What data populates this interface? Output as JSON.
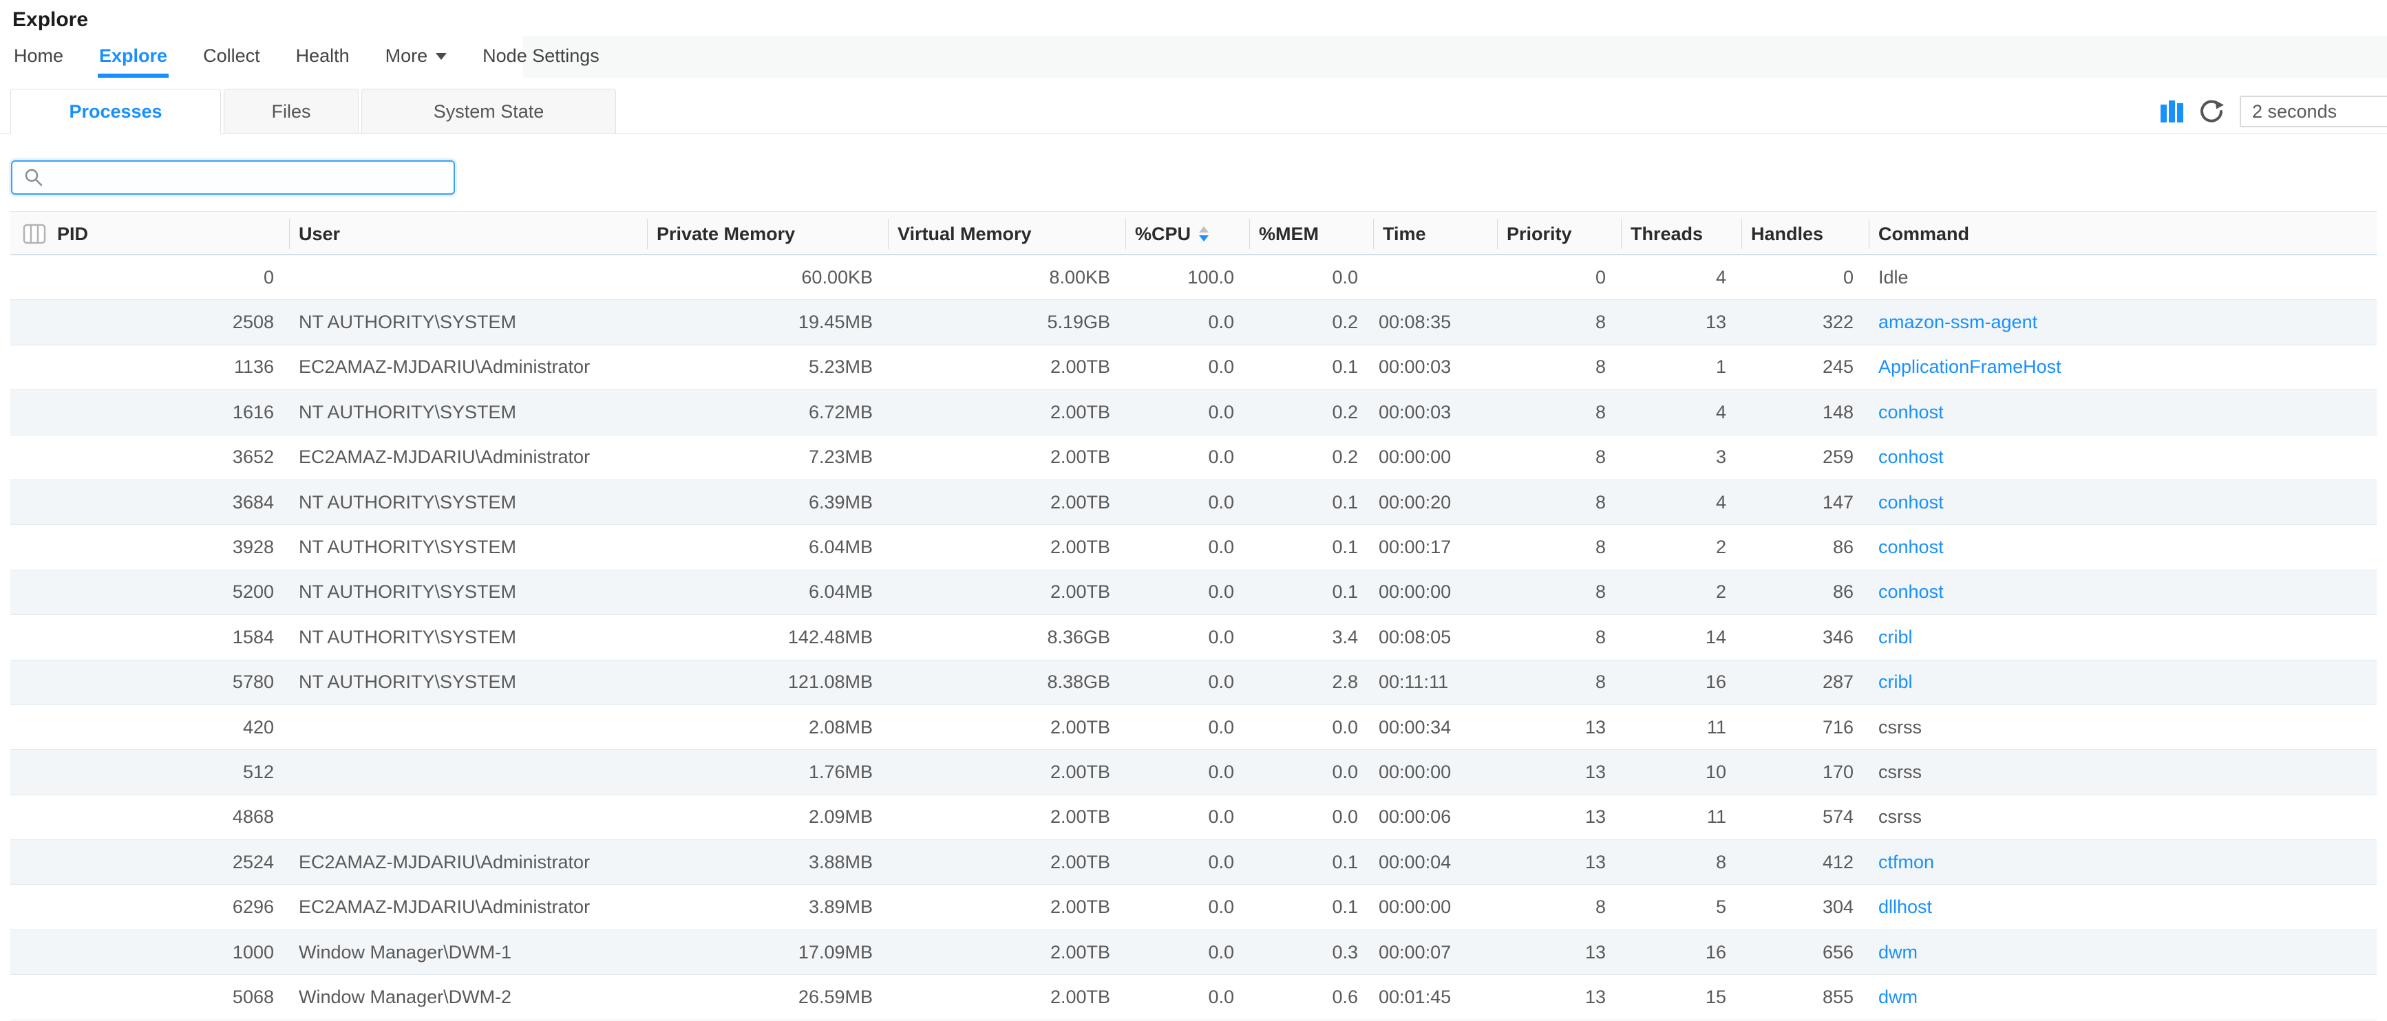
{
  "page_title": "Explore",
  "nav": {
    "items": [
      {
        "label": "Home",
        "active": false,
        "caret": false
      },
      {
        "label": "Explore",
        "active": true,
        "caret": false
      },
      {
        "label": "Collect",
        "active": false,
        "caret": false
      },
      {
        "label": "Health",
        "active": false,
        "caret": false
      },
      {
        "label": "More",
        "active": false,
        "caret": true
      },
      {
        "label": "Node Settings",
        "active": false,
        "caret": false
      }
    ]
  },
  "view_tabs": [
    {
      "label": "Processes",
      "active": true
    },
    {
      "label": "Files",
      "active": false
    },
    {
      "label": "System State",
      "active": false
    }
  ],
  "toolbar": {
    "chart_icon": "bar-chart-icon",
    "refresh_icon": "refresh-icon",
    "refresh_interval_value": "2 seconds"
  },
  "search": {
    "value": "",
    "placeholder": "",
    "icon": "search-icon"
  },
  "process_table": {
    "sort": {
      "column": "%CPU",
      "direction": "desc"
    },
    "columns": [
      {
        "label": "PID",
        "key": "pid",
        "align": "right",
        "icon": "columns-icon"
      },
      {
        "label": "User",
        "key": "user",
        "align": "left"
      },
      {
        "label": "Private Memory",
        "key": "private_memory",
        "align": "right"
      },
      {
        "label": "Virtual Memory",
        "key": "virtual_memory",
        "align": "right"
      },
      {
        "label": "%CPU",
        "key": "cpu",
        "align": "right",
        "sort": "desc"
      },
      {
        "label": "%MEM",
        "key": "mem",
        "align": "right"
      },
      {
        "label": "Time",
        "key": "time",
        "align": "left"
      },
      {
        "label": "Priority",
        "key": "priority",
        "align": "right"
      },
      {
        "label": "Threads",
        "key": "threads",
        "align": "right"
      },
      {
        "label": "Handles",
        "key": "handles",
        "align": "right"
      },
      {
        "label": "Command",
        "key": "command",
        "align": "left"
      }
    ],
    "rows": [
      {
        "pid": "0",
        "user": "",
        "private_memory": "60.00KB",
        "virtual_memory": "8.00KB",
        "cpu": "100.0",
        "mem": "0.0",
        "time": "",
        "priority": "0",
        "threads": "4",
        "handles": "0",
        "command": "Idle",
        "command_link": false
      },
      {
        "pid": "2508",
        "user": "NT AUTHORITY\\SYSTEM",
        "private_memory": "19.45MB",
        "virtual_memory": "5.19GB",
        "cpu": "0.0",
        "mem": "0.2",
        "time": "00:08:35",
        "priority": "8",
        "threads": "13",
        "handles": "322",
        "command": "amazon-ssm-agent",
        "command_link": true
      },
      {
        "pid": "1136",
        "user": "EC2AMAZ-MJDARIU\\Administrator",
        "private_memory": "5.23MB",
        "virtual_memory": "2.00TB",
        "cpu": "0.0",
        "mem": "0.1",
        "time": "00:00:03",
        "priority": "8",
        "threads": "1",
        "handles": "245",
        "command": "ApplicationFrameHost",
        "command_link": true
      },
      {
        "pid": "1616",
        "user": "NT AUTHORITY\\SYSTEM",
        "private_memory": "6.72MB",
        "virtual_memory": "2.00TB",
        "cpu": "0.0",
        "mem": "0.2",
        "time": "00:00:03",
        "priority": "8",
        "threads": "4",
        "handles": "148",
        "command": "conhost",
        "command_link": true
      },
      {
        "pid": "3652",
        "user": "EC2AMAZ-MJDARIU\\Administrator",
        "private_memory": "7.23MB",
        "virtual_memory": "2.00TB",
        "cpu": "0.0",
        "mem": "0.2",
        "time": "00:00:00",
        "priority": "8",
        "threads": "3",
        "handles": "259",
        "command": "conhost",
        "command_link": true
      },
      {
        "pid": "3684",
        "user": "NT AUTHORITY\\SYSTEM",
        "private_memory": "6.39MB",
        "virtual_memory": "2.00TB",
        "cpu": "0.0",
        "mem": "0.1",
        "time": "00:00:20",
        "priority": "8",
        "threads": "4",
        "handles": "147",
        "command": "conhost",
        "command_link": true
      },
      {
        "pid": "3928",
        "user": "NT AUTHORITY\\SYSTEM",
        "private_memory": "6.04MB",
        "virtual_memory": "2.00TB",
        "cpu": "0.0",
        "mem": "0.1",
        "time": "00:00:17",
        "priority": "8",
        "threads": "2",
        "handles": "86",
        "command": "conhost",
        "command_link": true
      },
      {
        "pid": "5200",
        "user": "NT AUTHORITY\\SYSTEM",
        "private_memory": "6.04MB",
        "virtual_memory": "2.00TB",
        "cpu": "0.0",
        "mem": "0.1",
        "time": "00:00:00",
        "priority": "8",
        "threads": "2",
        "handles": "86",
        "command": "conhost",
        "command_link": true
      },
      {
        "pid": "1584",
        "user": "NT AUTHORITY\\SYSTEM",
        "private_memory": "142.48MB",
        "virtual_memory": "8.36GB",
        "cpu": "0.0",
        "mem": "3.4",
        "time": "00:08:05",
        "priority": "8",
        "threads": "14",
        "handles": "346",
        "command": "cribl",
        "command_link": true
      },
      {
        "pid": "5780",
        "user": "NT AUTHORITY\\SYSTEM",
        "private_memory": "121.08MB",
        "virtual_memory": "8.38GB",
        "cpu": "0.0",
        "mem": "2.8",
        "time": "00:11:11",
        "priority": "8",
        "threads": "16",
        "handles": "287",
        "command": "cribl",
        "command_link": true
      },
      {
        "pid": "420",
        "user": "",
        "private_memory": "2.08MB",
        "virtual_memory": "2.00TB",
        "cpu": "0.0",
        "mem": "0.0",
        "time": "00:00:34",
        "priority": "13",
        "threads": "11",
        "handles": "716",
        "command": "csrss",
        "command_link": false
      },
      {
        "pid": "512",
        "user": "",
        "private_memory": "1.76MB",
        "virtual_memory": "2.00TB",
        "cpu": "0.0",
        "mem": "0.0",
        "time": "00:00:00",
        "priority": "13",
        "threads": "10",
        "handles": "170",
        "command": "csrss",
        "command_link": false
      },
      {
        "pid": "4868",
        "user": "",
        "private_memory": "2.09MB",
        "virtual_memory": "2.00TB",
        "cpu": "0.0",
        "mem": "0.0",
        "time": "00:00:06",
        "priority": "13",
        "threads": "11",
        "handles": "574",
        "command": "csrss",
        "command_link": false
      },
      {
        "pid": "2524",
        "user": "EC2AMAZ-MJDARIU\\Administrator",
        "private_memory": "3.88MB",
        "virtual_memory": "2.00TB",
        "cpu": "0.0",
        "mem": "0.1",
        "time": "00:00:04",
        "priority": "13",
        "threads": "8",
        "handles": "412",
        "command": "ctfmon",
        "command_link": true
      },
      {
        "pid": "6296",
        "user": "EC2AMAZ-MJDARIU\\Administrator",
        "private_memory": "3.89MB",
        "virtual_memory": "2.00TB",
        "cpu": "0.0",
        "mem": "0.1",
        "time": "00:00:00",
        "priority": "8",
        "threads": "5",
        "handles": "304",
        "command": "dllhost",
        "command_link": true
      },
      {
        "pid": "1000",
        "user": "Window Manager\\DWM-1",
        "private_memory": "17.09MB",
        "virtual_memory": "2.00TB",
        "cpu": "0.0",
        "mem": "0.3",
        "time": "00:00:07",
        "priority": "13",
        "threads": "16",
        "handles": "656",
        "command": "dwm",
        "command_link": true
      },
      {
        "pid": "5068",
        "user": "Window Manager\\DWM-2",
        "private_memory": "26.59MB",
        "virtual_memory": "2.00TB",
        "cpu": "0.0",
        "mem": "0.6",
        "time": "00:01:45",
        "priority": "13",
        "threads": "15",
        "handles": "855",
        "command": "dwm",
        "command_link": true
      }
    ]
  },
  "colors": {
    "accent_blue": "#1890ff",
    "link_blue": "#1890ff",
    "row_stripe": "#f2f6f9",
    "row_border": "#dfe9f0",
    "header_bottom_border": "#cfe0ec",
    "search_focus_border": "#3ea0f2"
  }
}
